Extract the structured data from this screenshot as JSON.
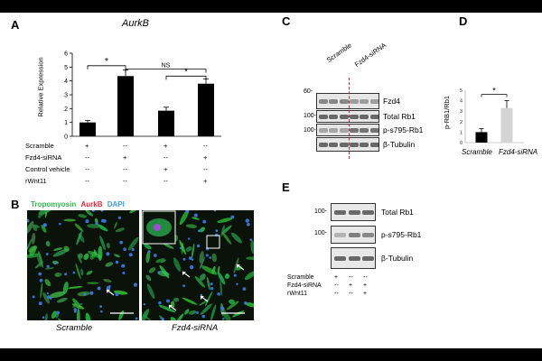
{
  "panels": {
    "a": "A",
    "b": "B",
    "c": "C",
    "d": "D",
    "e": "E"
  },
  "panel_a": {
    "title": "AurkB",
    "ylabel": "Relative Expression",
    "yticks": [
      "0",
      "1",
      "2",
      "3",
      "4",
      "5",
      "6"
    ],
    "significance": {
      "star1": "*",
      "ns": "NS",
      "star2": "*"
    },
    "conditions": [
      {
        "label": "Scramble",
        "values": [
          "+",
          "--",
          "+",
          "--"
        ]
      },
      {
        "label": "Fzd4-siRNA",
        "values": [
          "--",
          "+",
          "--",
          "+"
        ]
      },
      {
        "label": "Control vehicle",
        "values": [
          "--",
          "--",
          "+",
          "--"
        ]
      },
      {
        "label": "rWnt11",
        "values": [
          "--",
          "--",
          "--",
          "+"
        ]
      }
    ]
  },
  "chart_data": [
    {
      "type": "bar",
      "title": "AurkB",
      "ylabel": "Relative Expression",
      "ylim": [
        0,
        6
      ],
      "categories": [
        "Scramble",
        "Fzd4-siRNA",
        "Control vehicle",
        "rWnt11"
      ],
      "values": [
        1.0,
        4.35,
        1.85,
        3.8
      ],
      "errors": [
        0.15,
        0.45,
        0.25,
        0.35
      ]
    },
    {
      "type": "bar",
      "ylabel": "p-RB1/Rb1",
      "ylim": [
        0,
        5
      ],
      "categories": [
        "Scramble",
        "Fzd4-siRNA"
      ],
      "values": [
        1.0,
        3.3
      ],
      "errors": [
        0.35,
        0.7
      ]
    }
  ],
  "panel_b": {
    "stain_tropomyosin": "Tropomyosin",
    "stain_aurkb": "AurkB",
    "stain_dapi": "DAPI",
    "caption_left": "Scramble",
    "caption_right": "Fzd4-siRNA",
    "colors": {
      "tropomyosin": "#2dbb4a",
      "aurkb": "#e0263a",
      "dapi": "#3aa0e8"
    }
  },
  "panel_c": {
    "lanes": {
      "left": "Scramble",
      "right": "Fzd4-siRNA"
    },
    "mw_markers": [
      "60-",
      "100-",
      "100-"
    ],
    "bands": [
      "Fzd4",
      "Total Rb1",
      "p-s795-Rb1",
      "β-Tubulin"
    ]
  },
  "panel_d": {
    "ylabel": "p-RB1/Rb1",
    "yticks": [
      "0",
      "1",
      "2",
      "3",
      "4",
      "5"
    ],
    "significance": "*",
    "xlabels": [
      "Scramble",
      "Fzd4-siRNA"
    ]
  },
  "panel_e": {
    "mw_markers": [
      "100-",
      "100-"
    ],
    "bands": [
      "Total Rb1",
      "p-s795-Rb1",
      "β-Tubulin"
    ],
    "conditions": [
      {
        "label": "Scramble",
        "values": [
          "+",
          "--",
          "--"
        ]
      },
      {
        "label": "Fzd4-siRNA",
        "values": [
          "--",
          "+",
          "+"
        ]
      },
      {
        "label": "rWnt11",
        "values": [
          "--",
          "--",
          "+"
        ]
      }
    ]
  }
}
